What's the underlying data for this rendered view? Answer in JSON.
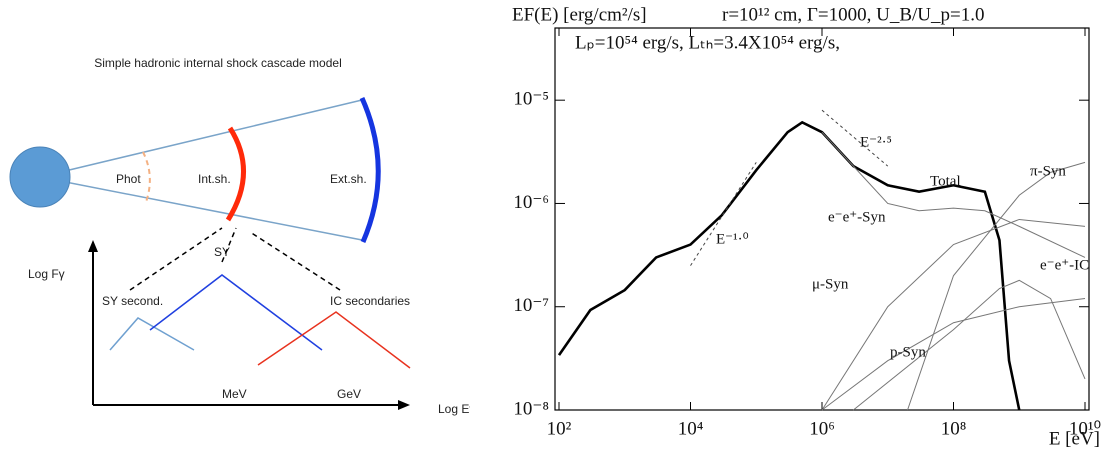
{
  "diagram": {
    "title": "Simple hadronic internal shock cascade model",
    "phot": "Phot",
    "int_sh": "Int.sh.",
    "ext_sh": "Ext.sh.",
    "y_axis": "Log Fγ",
    "x_axis": "Log Eγ",
    "sy_second": "SY second.",
    "sy": "SY",
    "ic_secondaries": "IC  secondaries",
    "mev": "MeV",
    "gev": "GeV"
  },
  "chart_data": {
    "type": "line",
    "title": "EF(E) [erg/cm²/s]",
    "subtitle": "r=10¹² cm, Γ=1000, U_B/U_p=1.0",
    "annotation": "Lₚ=10⁵⁴ erg/s, Lₜₕ=3.4X10⁵⁴ erg/s,",
    "x_label": "E [eV]",
    "xscale": "log",
    "yscale": "log",
    "xlim": [
      100,
      10000000000
    ],
    "ylim": [
      1e-08,
      5e-05
    ],
    "xticks": [
      {
        "value": 100,
        "label": "10²"
      },
      {
        "value": 10000,
        "label": "10⁴"
      },
      {
        "value": 1000000,
        "label": "10⁶"
      },
      {
        "value": 100000000,
        "label": "10⁸"
      },
      {
        "value": 10000000000,
        "label": "10¹⁰"
      }
    ],
    "yticks": [
      {
        "value": 1e-08,
        "label": "10⁻⁸"
      },
      {
        "value": 1e-07,
        "label": "10⁻⁷"
      },
      {
        "value": 1e-06,
        "label": "10⁻⁶"
      },
      {
        "value": 1e-05,
        "label": "10⁻⁵"
      }
    ],
    "series": [
      {
        "name": "Total",
        "color": "#000000",
        "x": [
          100,
          300,
          1000,
          3000,
          10000,
          30000,
          100000,
          300000,
          500000,
          1000000,
          3000000,
          10000000,
          30000000,
          100000000,
          300000000,
          500000000,
          700000000,
          1000000000
        ],
        "values": [
          3.4e-08,
          9.3e-08,
          1.45e-07,
          3e-07,
          4e-07,
          7.7e-07,
          2.1e-06,
          4.9e-06,
          6.1e-06,
          4.9e-06,
          2.3e-06,
          1.5e-06,
          1.3e-06,
          1.5e-06,
          1.3e-06,
          4.4e-07,
          3e-08,
          1e-08
        ]
      },
      {
        "name": "e⁻e⁺-Syn",
        "color": "#777777",
        "x": [
          1000000,
          3000000,
          10000000,
          30000000,
          100000000,
          300000000,
          1000000000,
          10000000000
        ],
        "values": [
          4.9e-06,
          2.3e-06,
          1e-06,
          8.5e-07,
          9e-07,
          8.5e-07,
          6e-07,
          3e-07
        ]
      },
      {
        "name": "π-Syn",
        "color": "#777777",
        "x": [
          20000000,
          100000000,
          1000000000,
          3000000000,
          10000000000
        ],
        "values": [
          1e-08,
          2e-07,
          1.2e-06,
          2e-06,
          2.5e-06
        ]
      },
      {
        "name": "μ-Syn",
        "color": "#777777",
        "x": [
          1000000,
          10000000,
          100000000,
          1000000000,
          10000000000
        ],
        "values": [
          1e-08,
          1e-07,
          4e-07,
          7e-07,
          6e-07
        ]
      },
      {
        "name": "e⁻e⁺-IC",
        "color": "#777777",
        "x": [
          3000000,
          100000000,
          500000000,
          1000000000,
          3000000000,
          10000000000
        ],
        "values": [
          1e-08,
          6e-08,
          1.5e-07,
          1.8e-07,
          1.2e-07,
          2e-08
        ]
      },
      {
        "name": "p-Syn",
        "color": "#777777",
        "x": [
          1000000,
          10000000,
          100000000,
          1000000000,
          10000000000
        ],
        "values": [
          1e-08,
          3e-08,
          7e-08,
          1e-07,
          1.2e-07
        ]
      },
      {
        "name": "E⁻¹·⁰",
        "color": "#444444",
        "dashed": true,
        "x": [
          10000,
          100000
        ],
        "values": [
          2.5e-07,
          2.5e-06
        ]
      },
      {
        "name": "E⁻²·⁵",
        "color": "#444444",
        "dashed": true,
        "x": [
          1000000,
          10000000
        ],
        "values": [
          8e-06,
          2.3e-06
        ]
      }
    ]
  }
}
